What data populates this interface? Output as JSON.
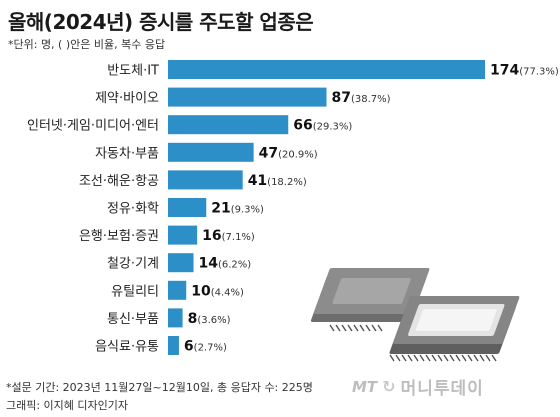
{
  "title": "올해(2024년) 증시를 주도할 업종은",
  "unit_note": "*단위: 명, ( )안은 비율, 복수 응답",
  "footnote": "*설문 기간: 2023년 11월27일~12월10일, 총 응답자 수: 225명",
  "credit": "그래픽: 이지혜 디자인기자",
  "logo": {
    "mt": "MT",
    "mark": "↻",
    "name": "머니투데이"
  },
  "colors": {
    "bar": "#2d8fc8",
    "label": "#222222",
    "value": "#111111",
    "pct": "#333333"
  },
  "chart_data": {
    "type": "bar",
    "orientation": "horizontal",
    "categories": [
      "반도체·IT",
      "제약·바이오",
      "인터넷·게임·미디어·엔터",
      "자동차·부품",
      "조선·해운·항공",
      "정유·화학",
      "은행·보험·증권",
      "철강·기계",
      "유틸리티",
      "통신·부품",
      "음식료·유통"
    ],
    "values": [
      174,
      87,
      66,
      47,
      41,
      21,
      16,
      14,
      10,
      8,
      6
    ],
    "percent_labels": [
      "(77.3%)",
      "(38.7%)",
      "(29.3%)",
      "(20.9%)",
      "(18.2%)",
      "(9.3%)",
      "(7.1%)",
      "(6.2%)",
      "(4.4%)",
      "(3.6%)",
      "(2.7%)"
    ],
    "xlim": [
      0,
      174
    ],
    "grid": false,
    "legend": "none"
  }
}
